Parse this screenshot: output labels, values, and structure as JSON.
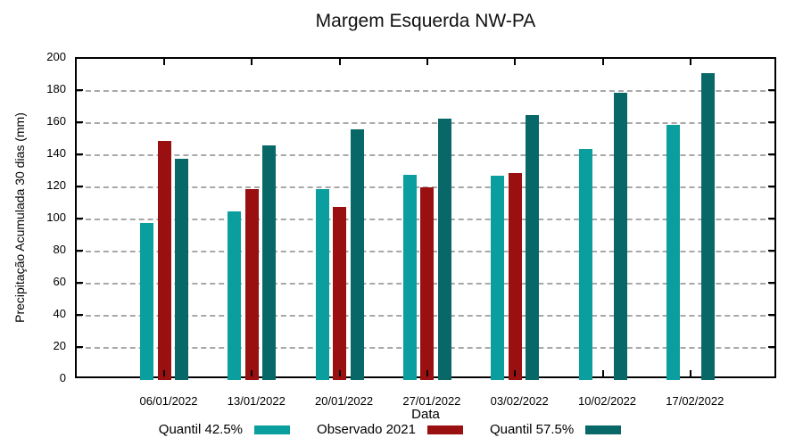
{
  "chart_data": {
    "type": "bar",
    "title": "Margem Esquerda NW-PA",
    "xlabel": "Data",
    "ylabel": "Precipitação Acumulada 30 dias (mm)",
    "ylim": [
      0,
      200
    ],
    "yticks": [
      0,
      20,
      40,
      60,
      80,
      100,
      120,
      140,
      160,
      180,
      200
    ],
    "grid": true,
    "grid_color": "#a8a8a8",
    "legend_position": "bottom",
    "categories": [
      "06/01/2022",
      "13/01/2022",
      "20/01/2022",
      "27/01/2022",
      "03/02/2022",
      "10/02/2022",
      "17/02/2022"
    ],
    "series": [
      {
        "name": "Quantil 42.5%",
        "color": "#0A9E9E",
        "values": [
          98,
          105,
          119,
          128,
          127,
          144,
          159
        ]
      },
      {
        "name": "Observado 2021",
        "color": "#9A0F0F",
        "values": [
          149,
          119,
          108,
          120,
          129,
          null,
          null
        ]
      },
      {
        "name": "Quantil 57.5%",
        "color": "#086868",
        "values": [
          138,
          146,
          156,
          163,
          165,
          179,
          191
        ]
      }
    ]
  }
}
